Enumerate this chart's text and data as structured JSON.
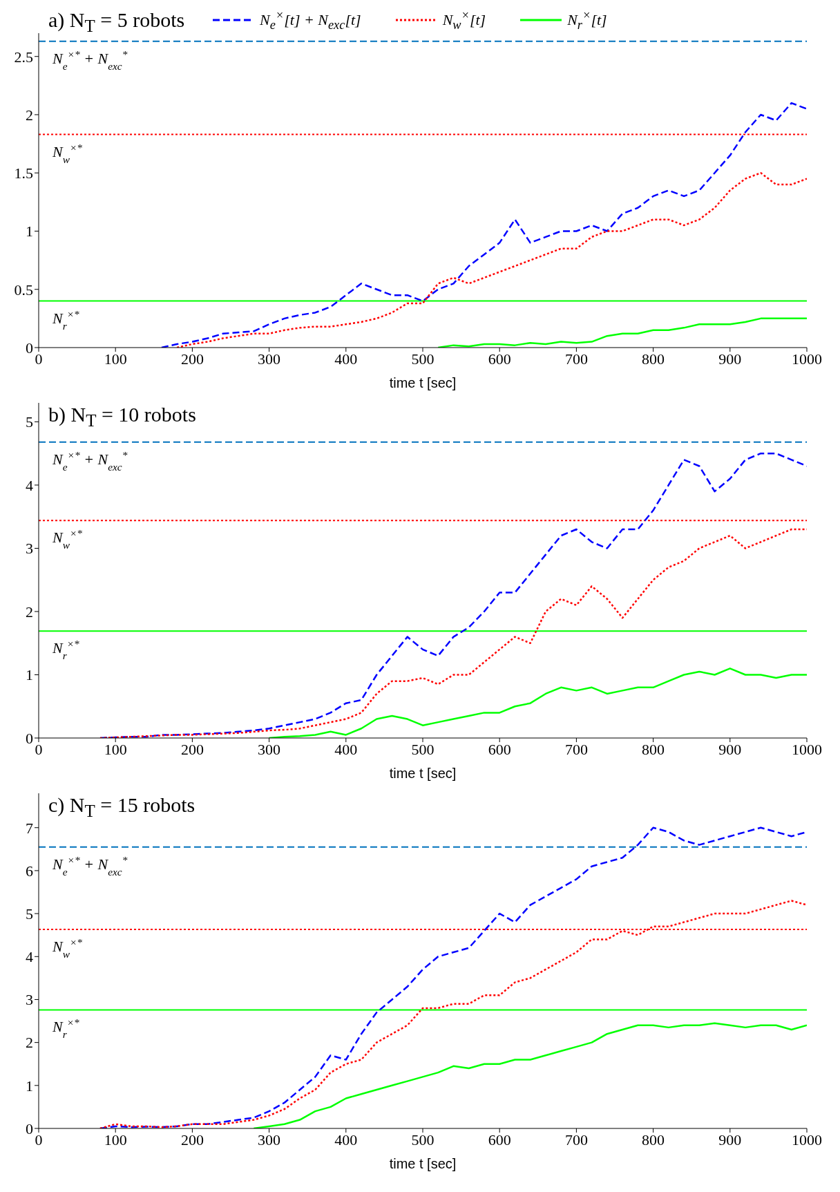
{
  "chart_data": [
    {
      "type": "line",
      "title": "a) N$_{T}$ = 5 robots",
      "xlabel": "time t [sec]",
      "legend": "top",
      "grid": false,
      "x": [
        160,
        180,
        200,
        220,
        240,
        260,
        280,
        300,
        320,
        340,
        360,
        380,
        400,
        420,
        440,
        460,
        480,
        500,
        520,
        540,
        560,
        580,
        600,
        620,
        640,
        660,
        680,
        700,
        720,
        740,
        760,
        780,
        800,
        820,
        840,
        860,
        880,
        900,
        920,
        940,
        960,
        980,
        1000
      ],
      "xlim": [
        0,
        1000
      ],
      "xticks": [
        0,
        100,
        200,
        300,
        400,
        500,
        600,
        700,
        800,
        900,
        1000
      ],
      "ylim": [
        0,
        2.7
      ],
      "yticks": [
        0,
        0.5,
        1,
        1.5,
        2,
        2.5
      ],
      "series": [
        {
          "name": "N$_{e}$$^{×}$[t] + N$_{exc}$[t]",
          "color": "#0000ff",
          "line_style": "dashed",
          "values": [
            0,
            0.03,
            0.05,
            0.08,
            0.12,
            0.13,
            0.14,
            0.2,
            0.25,
            0.28,
            0.3,
            0.35,
            0.45,
            0.55,
            0.5,
            0.45,
            0.45,
            0.4,
            0.5,
            0.55,
            0.7,
            0.8,
            0.9,
            1.1,
            0.9,
            0.95,
            1.0,
            1.0,
            1.05,
            1.0,
            1.15,
            1.2,
            1.3,
            1.35,
            1.3,
            1.35,
            1.5,
            1.65,
            1.85,
            2.0,
            1.95,
            2.1,
            2.05
          ]
        },
        {
          "name": "N$_{w}$$^{×}$[t]",
          "color": "#ff0000",
          "line_style": "dotted",
          "values": [
            null,
            0,
            0.03,
            0.05,
            0.08,
            0.1,
            0.12,
            0.12,
            0.15,
            0.17,
            0.18,
            0.18,
            0.2,
            0.22,
            0.25,
            0.3,
            0.38,
            0.38,
            0.55,
            0.6,
            0.55,
            0.6,
            0.65,
            0.7,
            0.75,
            0.8,
            0.85,
            0.85,
            0.95,
            1.0,
            1.0,
            1.05,
            1.1,
            1.1,
            1.05,
            1.1,
            1.2,
            1.35,
            1.45,
            1.5,
            1.4,
            1.4,
            1.45
          ]
        },
        {
          "name": "N$_{r}$$^{×}$[t]",
          "color": "#00ff00",
          "line_style": "solid",
          "values": [
            null,
            null,
            null,
            null,
            null,
            null,
            null,
            null,
            null,
            null,
            null,
            null,
            null,
            null,
            null,
            null,
            null,
            null,
            0,
            0.02,
            0.01,
            0.03,
            0.03,
            0.02,
            0.04,
            0.03,
            0.05,
            0.04,
            0.05,
            0.1,
            0.12,
            0.12,
            0.15,
            0.15,
            0.17,
            0.2,
            0.2,
            0.2,
            0.22,
            0.25,
            0.25,
            0.25,
            0.25
          ]
        }
      ],
      "ref_lines": [
        {
          "axis": "y",
          "value": 2.63,
          "label": "N$_{e}$$^{×*}$ + N$_{exc}$$^{*}$",
          "color": "#0072bd",
          "line_style": "dashed"
        },
        {
          "axis": "y",
          "value": 1.83,
          "label": "N$_{w}$$^{×*}$",
          "color": "#ff0000",
          "line_style": "dotted"
        },
        {
          "axis": "y",
          "value": 0.4,
          "label": "N$_{r}$$^{×*}$",
          "color": "#00ff00",
          "line_style": "solid"
        }
      ]
    },
    {
      "type": "line",
      "title": "b) N$_{T}$ = 10 robots",
      "xlabel": "time t [sec]",
      "grid": false,
      "x": [
        80,
        100,
        120,
        140,
        160,
        180,
        200,
        220,
        240,
        260,
        280,
        300,
        320,
        340,
        360,
        380,
        400,
        420,
        440,
        460,
        480,
        500,
        520,
        540,
        560,
        580,
        600,
        620,
        640,
        660,
        680,
        700,
        720,
        740,
        760,
        780,
        800,
        820,
        840,
        860,
        880,
        900,
        920,
        940,
        960,
        980,
        1000
      ],
      "xlim": [
        0,
        1000
      ],
      "xticks": [
        0,
        100,
        200,
        300,
        400,
        500,
        600,
        700,
        800,
        900,
        1000
      ],
      "ylim": [
        0,
        5.3
      ],
      "yticks": [
        0,
        1,
        2,
        3,
        4,
        5
      ],
      "series": [
        {
          "color": "#0000ff",
          "line_style": "dashed",
          "values": [
            0,
            0.01,
            0.02,
            0.02,
            0.05,
            0.05,
            0.06,
            0.07,
            0.08,
            0.1,
            0.12,
            0.15,
            0.2,
            0.25,
            0.3,
            0.4,
            0.55,
            0.6,
            1.0,
            1.3,
            1.6,
            1.4,
            1.3,
            1.6,
            1.75,
            2.0,
            2.3,
            2.3,
            2.6,
            2.9,
            3.2,
            3.3,
            3.1,
            3.0,
            3.3,
            3.3,
            3.6,
            4.0,
            4.4,
            4.3,
            3.9,
            4.1,
            4.4,
            4.5,
            4.5,
            4.4,
            4.3
          ]
        },
        {
          "color": "#ff0000",
          "line_style": "dotted",
          "values": [
            0,
            0.01,
            0.02,
            0.03,
            0.04,
            0.05,
            0.05,
            0.06,
            0.07,
            0.08,
            0.1,
            0.12,
            0.13,
            0.15,
            0.2,
            0.25,
            0.3,
            0.4,
            0.7,
            0.9,
            0.9,
            0.95,
            0.85,
            1.0,
            1.0,
            1.2,
            1.4,
            1.6,
            1.5,
            2.0,
            2.2,
            2.1,
            2.4,
            2.2,
            1.9,
            2.2,
            2.5,
            2.7,
            2.8,
            3.0,
            3.1,
            3.2,
            3.0,
            3.1,
            3.2,
            3.3,
            3.3
          ]
        },
        {
          "color": "#00ff00",
          "line_style": "solid",
          "values": [
            null,
            null,
            null,
            null,
            null,
            null,
            null,
            null,
            null,
            null,
            null,
            0,
            0.02,
            0.03,
            0.05,
            0.1,
            0.05,
            0.15,
            0.3,
            0.35,
            0.3,
            0.2,
            0.25,
            0.3,
            0.35,
            0.4,
            0.4,
            0.5,
            0.55,
            0.7,
            0.8,
            0.75,
            0.8,
            0.7,
            0.75,
            0.8,
            0.8,
            0.9,
            1.0,
            1.05,
            1.0,
            1.1,
            1.0,
            1.0,
            0.95,
            1.0,
            1.0
          ]
        }
      ],
      "ref_lines": [
        {
          "axis": "y",
          "value": 4.68,
          "label": "N$_{e}$$^{×*}$ + N$_{exc}$$^{*}$",
          "color": "#0072bd",
          "line_style": "dashed"
        },
        {
          "axis": "y",
          "value": 3.44,
          "label": "N$_{w}$$^{×*}$",
          "color": "#ff0000",
          "line_style": "dotted"
        },
        {
          "axis": "y",
          "value": 1.69,
          "label": "N$_{r}$$^{×*}$",
          "color": "#00ff00",
          "line_style": "solid"
        }
      ]
    },
    {
      "type": "line",
      "title": "c) N$_{T}$ = 15 robots",
      "xlabel": "time t [sec]",
      "grid": false,
      "x": [
        80,
        100,
        120,
        140,
        160,
        180,
        200,
        220,
        240,
        260,
        280,
        300,
        320,
        340,
        360,
        380,
        400,
        420,
        440,
        460,
        480,
        500,
        520,
        540,
        560,
        580,
        600,
        620,
        640,
        660,
        680,
        700,
        720,
        740,
        760,
        780,
        800,
        820,
        840,
        860,
        880,
        900,
        920,
        940,
        960,
        980,
        1000
      ],
      "xlim": [
        0,
        1000
      ],
      "xticks": [
        0,
        100,
        200,
        300,
        400,
        500,
        600,
        700,
        800,
        900,
        1000
      ],
      "ylim": [
        0,
        7.8
      ],
      "yticks": [
        0,
        1,
        2,
        3,
        4,
        5,
        6,
        7
      ],
      "series": [
        {
          "color": "#0000ff",
          "line_style": "dashed",
          "values": [
            0,
            0.05,
            0.03,
            0.04,
            0.03,
            0.05,
            0.1,
            0.1,
            0.15,
            0.2,
            0.25,
            0.4,
            0.6,
            0.9,
            1.2,
            1.7,
            1.6,
            2.2,
            2.7,
            3.0,
            3.3,
            3.7,
            4.0,
            4.1,
            4.2,
            4.6,
            5.0,
            4.8,
            5.2,
            5.4,
            5.6,
            5.8,
            6.1,
            6.2,
            6.3,
            6.6,
            7.0,
            6.9,
            6.7,
            6.6,
            6.7,
            6.8,
            6.9,
            7.0,
            6.9,
            6.8,
            6.9
          ]
        },
        {
          "color": "#ff0000",
          "line_style": "dotted",
          "values": [
            0,
            0.1,
            0.05,
            0.05,
            0.03,
            0.05,
            0.1,
            0.1,
            0.1,
            0.15,
            0.2,
            0.3,
            0.45,
            0.7,
            0.9,
            1.3,
            1.5,
            1.6,
            2.0,
            2.2,
            2.4,
            2.8,
            2.8,
            2.9,
            2.9,
            3.1,
            3.1,
            3.4,
            3.5,
            3.7,
            3.9,
            4.1,
            4.4,
            4.4,
            4.6,
            4.5,
            4.7,
            4.7,
            4.8,
            4.9,
            5.0,
            5.0,
            5.0,
            5.1,
            5.2,
            5.3,
            5.2
          ]
        },
        {
          "color": "#00ff00",
          "line_style": "solid",
          "values": [
            null,
            null,
            null,
            null,
            null,
            null,
            null,
            null,
            null,
            null,
            0,
            0.05,
            0.1,
            0.2,
            0.4,
            0.5,
            0.7,
            0.8,
            0.9,
            1.0,
            1.1,
            1.2,
            1.3,
            1.45,
            1.4,
            1.5,
            1.5,
            1.6,
            1.6,
            1.7,
            1.8,
            1.9,
            2.0,
            2.2,
            2.3,
            2.4,
            2.4,
            2.35,
            2.4,
            2.4,
            2.45,
            2.4,
            2.35,
            2.4,
            2.4,
            2.3,
            2.4
          ]
        }
      ],
      "ref_lines": [
        {
          "axis": "y",
          "value": 6.55,
          "label": "N$_{e}$$^{×*}$ + N$_{exc}$$^{*}$",
          "color": "#0072bd",
          "line_style": "dashed"
        },
        {
          "axis": "y",
          "value": 4.63,
          "label": "N$_{w}$$^{×*}$",
          "color": "#ff0000",
          "line_style": "dotted"
        },
        {
          "axis": "y",
          "value": 2.76,
          "label": "N$_{r}$$^{×*}$",
          "color": "#00ff00",
          "line_style": "solid"
        }
      ]
    }
  ]
}
